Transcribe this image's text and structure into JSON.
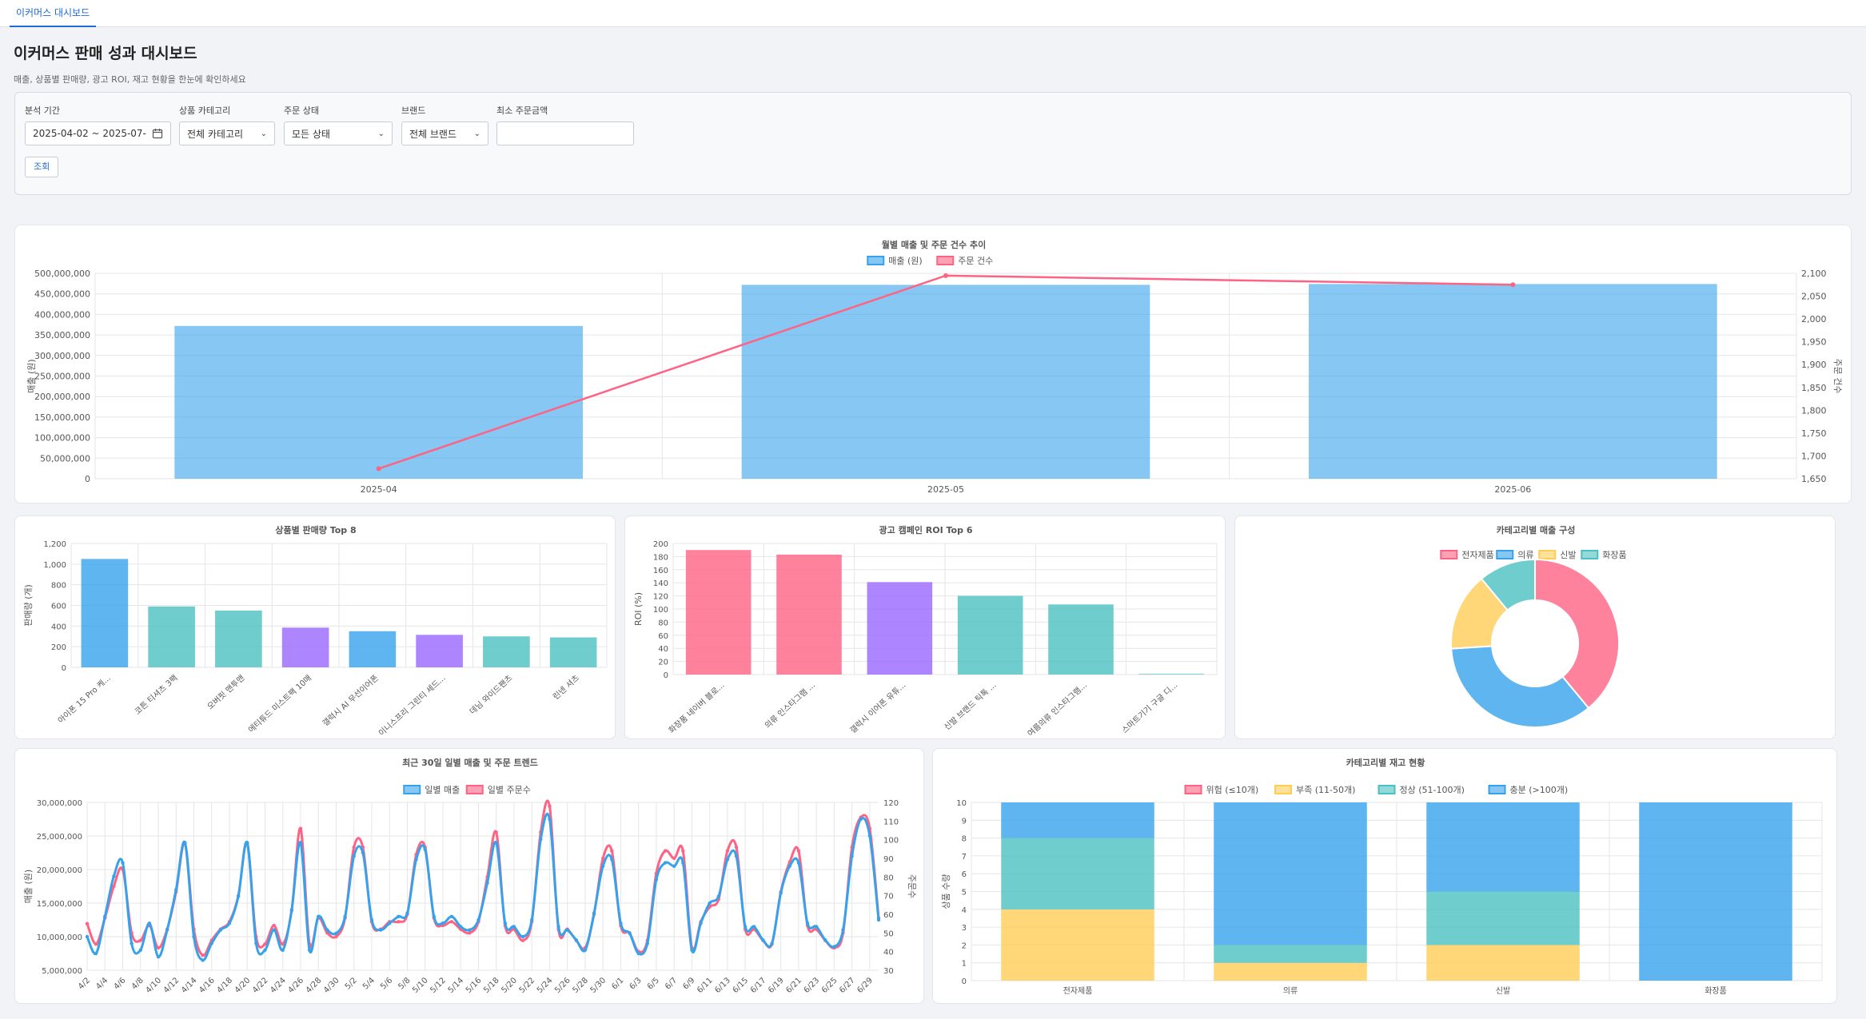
{
  "tab": {
    "label": "이커머스 대시보드"
  },
  "header": {
    "title": "이커머스 판매 성과 대시보드",
    "subtitle": "매출, 상품별 판매량, 광고 ROI, 재고 현황을 한눈에 확인하세요"
  },
  "filters": {
    "period_label": "분석 기간",
    "period_value": "2025-04-02 ~ 2025-07-",
    "category_label": "상품 카테고리",
    "category_value": "전체 카테고리",
    "status_label": "주문 상태",
    "status_value": "모든 상태",
    "brand_label": "브랜드",
    "brand_value": "전체 브랜드",
    "min_amount_label": "최소 주문금액",
    "min_amount_value": "",
    "query_label": "조회"
  },
  "colors": {
    "blue": "#36a2eb",
    "pink": "#ff6384",
    "teal": "#4bc0c0",
    "purple": "#9966ff",
    "yellow": "#ffcd56"
  },
  "chart_data": [
    {
      "type": "bar",
      "title": "월별 매출 및 주문 건수 추이",
      "categories": [
        "2025-04",
        "2025-05",
        "2025-06"
      ],
      "series": [
        {
          "name": "매출 (원)",
          "type": "bar",
          "axis": "left",
          "values": [
            372000000,
            472000000,
            474000000
          ]
        },
        {
          "name": "주문 건수",
          "type": "line",
          "axis": "right",
          "values": [
            1672,
            2095,
            2075
          ]
        }
      ],
      "ylabel": "매출 (원)",
      "y2label": "주문 건수",
      "ylim": [
        0,
        500000000
      ],
      "y2lim": [
        1650,
        2100
      ],
      "yticks": [
        "0",
        "50,000,000",
        "100,000,000",
        "150,000,000",
        "200,000,000",
        "250,000,000",
        "300,000,000",
        "350,000,000",
        "400,000,000",
        "450,000,000",
        "500,000,000"
      ],
      "y2ticks": [
        "1,650",
        "1,700",
        "1,750",
        "1,800",
        "1,850",
        "1,900",
        "1,950",
        "2,000",
        "2,050",
        "2,100"
      ],
      "legend": "top"
    },
    {
      "type": "bar",
      "title": "상품별 판매량 Top 8",
      "categories": [
        "아이폰 15 Pro 케...",
        "코튼 티셔츠 3팩",
        "오버핏 맨투맨",
        "에티튜드 미스트팩 10매",
        "갤럭시 AI 무선이어폰",
        "이니스프리 그린티 세드...",
        "데님 와이드팬츠",
        "린넨 셔츠"
      ],
      "values": [
        1050,
        590,
        550,
        385,
        350,
        315,
        300,
        290
      ],
      "colors": [
        "#36a2eb",
        "#4bc0c0",
        "#4bc0c0",
        "#9966ff",
        "#36a2eb",
        "#9966ff",
        "#4bc0c0",
        "#4bc0c0"
      ],
      "ylabel": "판매량 (개)",
      "ylim": [
        0,
        1200
      ],
      "yticks": [
        "0",
        "200",
        "400",
        "600",
        "800",
        "1,000",
        "1,200"
      ]
    },
    {
      "type": "bar",
      "title": "광고 캠페인 ROI Top 6",
      "categories": [
        "화장품 네이버 블로...",
        "의류 인스타그램 ...",
        "갤럭시 이어폰 유튜...",
        "신발 브랜드 틱톡 ...",
        "여름의류 인스타그램...",
        "스마트기기 구글 디..."
      ],
      "values": [
        190,
        183,
        141,
        120,
        107,
        1
      ],
      "colors": [
        "#ff6384",
        "#ff6384",
        "#9966ff",
        "#4bc0c0",
        "#4bc0c0",
        "#4bc0c0"
      ],
      "ylabel": "ROI (%)",
      "ylim": [
        0,
        200
      ],
      "yticks": [
        "0",
        "20",
        "40",
        "60",
        "80",
        "100",
        "120",
        "140",
        "160",
        "180",
        "200"
      ]
    },
    {
      "type": "pie",
      "title": "카테고리별 매출 구성",
      "labels": [
        "전자제품",
        "의류",
        "신발",
        "화장품"
      ],
      "values": [
        39,
        35,
        15,
        11
      ],
      "colors": [
        "#ff6384",
        "#36a2eb",
        "#ffcd56",
        "#4bc0c0"
      ],
      "legend": "top"
    },
    {
      "type": "line",
      "title": "최근 30일 일별 매출 및 주문 트렌드",
      "x": [
        "4/2",
        "4/3",
        "4/4",
        "4/5",
        "4/6",
        "4/7",
        "4/8",
        "4/9",
        "4/10",
        "4/11",
        "4/12",
        "4/13",
        "4/14",
        "4/15",
        "4/16",
        "4/17",
        "4/18",
        "4/19",
        "4/20",
        "4/21",
        "4/22",
        "4/23",
        "4/24",
        "4/25",
        "4/26",
        "4/27",
        "4/28",
        "4/29",
        "4/30",
        "5/1",
        "5/2",
        "5/3",
        "5/4",
        "5/5",
        "5/6",
        "5/7",
        "5/8",
        "5/9",
        "5/10",
        "5/11",
        "5/12",
        "5/13",
        "5/14",
        "5/15",
        "5/16",
        "5/17",
        "5/18",
        "5/19",
        "5/20",
        "5/21",
        "5/22",
        "5/23",
        "5/24",
        "5/25",
        "5/26",
        "5/27",
        "5/28",
        "5/29",
        "5/30",
        "5/31",
        "6/1",
        "6/2",
        "6/3",
        "6/4",
        "6/5",
        "6/6",
        "6/7",
        "6/8",
        "6/9",
        "6/10",
        "6/11",
        "6/12",
        "6/13",
        "6/14",
        "6/15",
        "6/16",
        "6/17",
        "6/18",
        "6/19",
        "6/20",
        "6/21",
        "6/22",
        "6/23",
        "6/24",
        "6/25",
        "6/26",
        "6/27",
        "6/28",
        "6/29",
        "6/30"
      ],
      "xticks": [
        "4/2",
        "4/4",
        "4/6",
        "4/8",
        "4/10",
        "4/12",
        "4/14",
        "4/16",
        "4/18",
        "4/20",
        "4/22",
        "4/24",
        "4/26",
        "4/28",
        "4/30",
        "5/2",
        "5/4",
        "5/6",
        "5/8",
        "5/10",
        "5/12",
        "5/14",
        "5/16",
        "5/18",
        "5/20",
        "5/22",
        "5/24",
        "5/26",
        "5/28",
        "5/30",
        "6/1",
        "6/3",
        "6/5",
        "6/7",
        "6/9",
        "6/11",
        "6/13",
        "6/15",
        "6/17",
        "6/19",
        "6/21",
        "6/23",
        "6/25",
        "6/27",
        "6/29"
      ],
      "series": [
        {
          "name": "일별 매출",
          "axis": "left",
          "values": [
            10000000,
            7500000,
            13000000,
            19000000,
            21000000,
            9000000,
            8000000,
            12000000,
            7000000,
            11000000,
            17000000,
            24000000,
            10000000,
            6500000,
            9000000,
            11000000,
            12000000,
            16000000,
            24000000,
            9000000,
            8000000,
            11000000,
            8000000,
            14000000,
            24000000,
            8000000,
            13000000,
            11000000,
            10500000,
            13000000,
            22000000,
            22500000,
            12500000,
            11000000,
            12000000,
            13000000,
            13500000,
            21500000,
            23000000,
            13000000,
            12000000,
            13000000,
            11500000,
            11000000,
            12500000,
            18000000,
            24000000,
            12000000,
            11500000,
            10000000,
            12500000,
            24500000,
            27500000,
            11500000,
            11000000,
            9500000,
            8000000,
            13500000,
            20500000,
            21500000,
            12000000,
            10500000,
            7500000,
            9000000,
            18500000,
            21000000,
            20500000,
            21000000,
            8000000,
            12000000,
            15000000,
            16000000,
            21500000,
            22000000,
            11500000,
            11500000,
            9500000,
            9000000,
            16500000,
            20500000,
            21000000,
            12000000,
            11500000,
            9500000,
            8500000,
            11000000,
            22000000,
            27500000,
            25000000,
            12500000
          ]
        },
        {
          "name": "일별 주문수",
          "axis": "right",
          "values": [
            55,
            44,
            58,
            75,
            84,
            50,
            46,
            54,
            42,
            52,
            72,
            98,
            52,
            38,
            46,
            52,
            56,
            70,
            98,
            48,
            44,
            54,
            44,
            62,
            106,
            44,
            58,
            50,
            48,
            58,
            96,
            96,
            56,
            52,
            56,
            56,
            60,
            92,
            96,
            58,
            54,
            56,
            52,
            50,
            56,
            80,
            104,
            54,
            52,
            46,
            56,
            104,
            118,
            52,
            52,
            46,
            42,
            60,
            90,
            94,
            54,
            50,
            40,
            46,
            82,
            94,
            90,
            94,
            42,
            56,
            64,
            68,
            94,
            96,
            52,
            52,
            46,
            44,
            72,
            88,
            94,
            54,
            52,
            46,
            42,
            50,
            96,
            112,
            106,
            58
          ]
        }
      ],
      "ylabel": "매출 (원)",
      "y2label": "주문수",
      "ylim": [
        5000000,
        30000000
      ],
      "y2lim": [
        30,
        120
      ],
      "yticks": [
        "5,000,000",
        "10,000,000",
        "15,000,000",
        "20,000,000",
        "25,000,000",
        "30,000,000"
      ],
      "y2ticks": [
        "30",
        "40",
        "50",
        "60",
        "70",
        "80",
        "90",
        "100",
        "110",
        "120"
      ],
      "legend": "top"
    },
    {
      "type": "bar",
      "stacked": true,
      "title": "카테고리별 재고 현황",
      "categories": [
        "전자제품",
        "의류",
        "신발",
        "화장품"
      ],
      "series": [
        {
          "name": "위험 (≤10개)",
          "color": "#ff6384",
          "values": [
            0,
            0,
            0,
            0
          ]
        },
        {
          "name": "부족 (11-50개)",
          "color": "#ffcd56",
          "values": [
            4,
            1,
            2,
            0
          ]
        },
        {
          "name": "정상 (51-100개)",
          "color": "#4bc0c0",
          "values": [
            4,
            1,
            3,
            0
          ]
        },
        {
          "name": "충분 (>100개)",
          "color": "#36a2eb",
          "values": [
            2,
            8,
            5,
            10
          ]
        }
      ],
      "ylabel": "상품 수량",
      "ylim": [
        0,
        10
      ],
      "yticks": [
        "0",
        "1",
        "2",
        "3",
        "4",
        "5",
        "6",
        "7",
        "8",
        "9",
        "10"
      ],
      "legend": "top"
    }
  ]
}
